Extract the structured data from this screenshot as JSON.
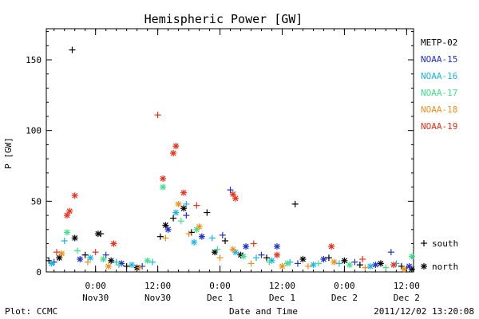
{
  "chart_data": {
    "type": "scatter",
    "title": "Hemispheric Power [GW]",
    "ylabel": "P [GW]",
    "xlabel": "Date and Time",
    "ylim": [
      0,
      172
    ],
    "xlim": [
      "2011-11-29 14:30",
      "2011-12-02 13:20"
    ],
    "y_ticks": [
      "0",
      "50",
      "100",
      "150"
    ],
    "y_tick_values": [
      0,
      50,
      100,
      150
    ],
    "x_ticks": [
      {
        "t": "2011-11-30 00:00",
        "l1": "0:00",
        "l2": "Nov30"
      },
      {
        "t": "2011-11-30 12:00",
        "l1": "12:00",
        "l2": "Nov30"
      },
      {
        "t": "2011-12-01 00:00",
        "l1": "0:00",
        "l2": "Dec 1"
      },
      {
        "t": "2011-12-01 12:00",
        "l1": "12:00",
        "l2": "Dec 1"
      },
      {
        "t": "2011-12-02 00:00",
        "l1": "0:00",
        "l2": "Dec 2"
      },
      {
        "t": "2011-12-02 12:00",
        "l1": "12:00",
        "l2": "Dec 2"
      }
    ],
    "grid": false,
    "legend_position": "right",
    "symbol_legend": [
      {
        "symbol": "+",
        "label": "south"
      },
      {
        "symbol": "*",
        "label": "north"
      }
    ],
    "series": [
      {
        "name": "METP-02",
        "color": "#000000",
        "points": [
          [
            "2011-11-29 15:00",
            8,
            "+"
          ],
          [
            "2011-11-29 17:00",
            10,
            "*"
          ],
          [
            "2011-11-29 19:30",
            157,
            "+"
          ],
          [
            "2011-11-29 20:00",
            24,
            "*"
          ],
          [
            "2011-11-29 22:00",
            12,
            "+"
          ],
          [
            "2011-11-30 00:30",
            27,
            "*"
          ],
          [
            "2011-11-30 01:00",
            27,
            "+"
          ],
          [
            "2011-11-30 03:00",
            8,
            "*"
          ],
          [
            "2011-11-30 06:00",
            4,
            "+"
          ],
          [
            "2011-11-30 08:00",
            3,
            "*"
          ],
          [
            "2011-11-30 12:30",
            25,
            "+"
          ],
          [
            "2011-11-30 13:30",
            33,
            "*"
          ],
          [
            "2011-11-30 15:00",
            38,
            "+"
          ],
          [
            "2011-11-30 17:00",
            45,
            "*"
          ],
          [
            "2011-11-30 18:30",
            28,
            "+"
          ],
          [
            "2011-11-30 21:30",
            42,
            "+"
          ],
          [
            "2011-11-30 23:00",
            14,
            "*"
          ],
          [
            "2011-12-01 01:00",
            22,
            "+"
          ],
          [
            "2011-12-01 04:00",
            12,
            "*"
          ],
          [
            "2011-12-01 09:00",
            10,
            "+"
          ],
          [
            "2011-12-01 14:30",
            48,
            "+"
          ],
          [
            "2011-12-01 16:00",
            9,
            "*"
          ],
          [
            "2011-12-01 21:00",
            10,
            "+"
          ],
          [
            "2011-12-02 00:00",
            8,
            "*"
          ],
          [
            "2011-12-02 03:00",
            5,
            "+"
          ],
          [
            "2011-12-02 07:00",
            6,
            "*"
          ],
          [
            "2011-12-02 11:00",
            4,
            "+"
          ],
          [
            "2011-12-02 13:00",
            2,
            "*"
          ]
        ]
      },
      {
        "name": "NOAA-15",
        "color": "#1f2fc8",
        "points": [
          [
            "2011-11-29 16:00",
            7,
            "+"
          ],
          [
            "2011-11-29 21:00",
            9,
            "*"
          ],
          [
            "2011-11-30 02:00",
            12,
            "+"
          ],
          [
            "2011-11-30 05:00",
            6,
            "*"
          ],
          [
            "2011-11-30 09:00",
            4,
            "+"
          ],
          [
            "2011-11-30 14:00",
            30,
            "*"
          ],
          [
            "2011-11-30 17:30",
            40,
            "+"
          ],
          [
            "2011-11-30 20:30",
            25,
            "*"
          ],
          [
            "2011-12-01 00:30",
            26,
            "+"
          ],
          [
            "2011-12-01 02:00",
            58,
            "+"
          ],
          [
            "2011-12-01 05:00",
            18,
            "*"
          ],
          [
            "2011-12-01 08:00",
            12,
            "+"
          ],
          [
            "2011-12-01 11:00",
            18,
            "*"
          ],
          [
            "2011-12-01 15:00",
            6,
            "+"
          ],
          [
            "2011-12-01 20:00",
            9,
            "*"
          ],
          [
            "2011-12-02 02:00",
            7,
            "+"
          ],
          [
            "2011-12-02 06:00",
            5,
            "*"
          ],
          [
            "2011-12-02 09:00",
            14,
            "+"
          ],
          [
            "2011-12-02 12:30",
            4,
            "*"
          ]
        ]
      },
      {
        "name": "NOAA-16",
        "color": "#1bb4e8",
        "points": [
          [
            "2011-11-29 15:30",
            6,
            "*"
          ],
          [
            "2011-11-29 18:00",
            22,
            "+"
          ],
          [
            "2011-11-29 23:00",
            10,
            "*"
          ],
          [
            "2011-11-30 04:00",
            7,
            "+"
          ],
          [
            "2011-11-30 07:00",
            5,
            "*"
          ],
          [
            "2011-11-30 11:00",
            7,
            "+"
          ],
          [
            "2011-11-30 15:30",
            42,
            "*"
          ],
          [
            "2011-11-30 17:30",
            48,
            "+"
          ],
          [
            "2011-11-30 19:00",
            21,
            "*"
          ],
          [
            "2011-11-30 22:30",
            24,
            "+"
          ],
          [
            "2011-12-01 03:00",
            14,
            "*"
          ],
          [
            "2011-12-01 07:00",
            10,
            "+"
          ],
          [
            "2011-12-01 10:00",
            8,
            "*"
          ],
          [
            "2011-12-01 13:30",
            7,
            "+"
          ],
          [
            "2011-12-01 18:00",
            5,
            "*"
          ],
          [
            "2011-12-01 23:00",
            6,
            "+"
          ],
          [
            "2011-12-02 05:00",
            4,
            "*"
          ],
          [
            "2011-12-02 10:00",
            6,
            "+"
          ]
        ]
      },
      {
        "name": "NOAA-17",
        "color": "#3ee08a",
        "points": [
          [
            "2011-11-29 18:30",
            28,
            "*"
          ],
          [
            "2011-11-29 20:30",
            15,
            "+"
          ],
          [
            "2011-11-30 01:30",
            9,
            "*"
          ],
          [
            "2011-11-30 04:30",
            5,
            "+"
          ],
          [
            "2011-11-30 10:00",
            8,
            "*"
          ],
          [
            "2011-11-30 13:00",
            60,
            "*"
          ],
          [
            "2011-11-30 16:30",
            36,
            "+"
          ],
          [
            "2011-11-30 19:30",
            30,
            "*"
          ],
          [
            "2011-11-30 23:30",
            16,
            "+"
          ],
          [
            "2011-12-01 04:30",
            11,
            "*"
          ],
          [
            "2011-12-01 09:30",
            7,
            "+"
          ],
          [
            "2011-12-01 13:00",
            6,
            "*"
          ],
          [
            "2011-12-01 19:00",
            6,
            "+"
          ],
          [
            "2011-12-02 01:00",
            5,
            "*"
          ],
          [
            "2011-12-02 08:00",
            3,
            "+"
          ],
          [
            "2011-12-02 13:00",
            11,
            "*"
          ]
        ]
      },
      {
        "name": "NOAA-18",
        "color": "#f0901a",
        "points": [
          [
            "2011-11-29 17:30",
            13,
            "*"
          ],
          [
            "2011-11-29 22:30",
            7,
            "+"
          ],
          [
            "2011-11-30 02:30",
            4,
            "*"
          ],
          [
            "2011-11-30 08:30",
            3,
            "+"
          ],
          [
            "2011-11-30 13:30",
            24,
            "+"
          ],
          [
            "2011-11-30 16:00",
            48,
            "*"
          ],
          [
            "2011-11-30 18:00",
            27,
            "+"
          ],
          [
            "2011-11-30 20:00",
            32,
            "*"
          ],
          [
            "2011-12-01 00:00",
            10,
            "+"
          ],
          [
            "2011-12-01 02:30",
            16,
            "*"
          ],
          [
            "2011-12-01 06:00",
            6,
            "+"
          ],
          [
            "2011-12-01 12:00",
            4,
            "*"
          ],
          [
            "2011-12-01 17:00",
            4,
            "+"
          ],
          [
            "2011-12-01 22:00",
            7,
            "*"
          ],
          [
            "2011-12-02 04:00",
            3,
            "+"
          ],
          [
            "2011-12-02 11:30",
            2,
            "*"
          ]
        ]
      },
      {
        "name": "NOAA-19",
        "color": "#e8301a",
        "points": [
          [
            "2011-11-29 16:30",
            14,
            "+"
          ],
          [
            "2011-11-29 18:30",
            40,
            "*"
          ],
          [
            "2011-11-29 19:00",
            43,
            "*"
          ],
          [
            "2011-11-29 20:00",
            54,
            "*"
          ],
          [
            "2011-11-30 00:00",
            14,
            "+"
          ],
          [
            "2011-11-30 03:30",
            20,
            "*"
          ],
          [
            "2011-11-30 12:00",
            111,
            "+"
          ],
          [
            "2011-11-30 13:00",
            66,
            "*"
          ],
          [
            "2011-11-30 15:00",
            84,
            "*"
          ],
          [
            "2011-11-30 15:30",
            89,
            "*"
          ],
          [
            "2011-11-30 17:00",
            56,
            "*"
          ],
          [
            "2011-11-30 19:30",
            47,
            "+"
          ],
          [
            "2011-12-01 02:30",
            55,
            "*"
          ],
          [
            "2011-12-01 03:00",
            52,
            "*"
          ],
          [
            "2011-12-01 06:30",
            20,
            "+"
          ],
          [
            "2011-12-01 11:00",
            12,
            "*"
          ],
          [
            "2011-12-01 21:30",
            18,
            "*"
          ],
          [
            "2011-12-02 03:30",
            9,
            "+"
          ],
          [
            "2011-12-02 09:30",
            5,
            "*"
          ]
        ]
      }
    ]
  },
  "footer": {
    "plot_credit": "Plot: CCMC",
    "timestamp": "2011/12/02 13:20:08"
  }
}
